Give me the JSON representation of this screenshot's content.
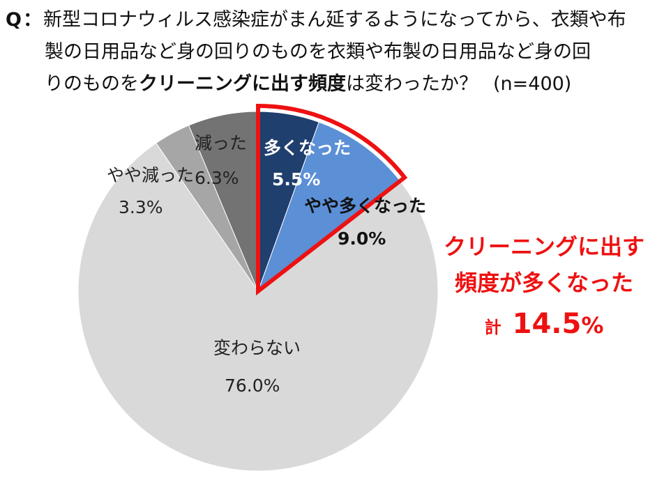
{
  "question": {
    "prefix": "Q：",
    "line1": "新型コロナウィルス感染症がまん延するようになってから、衣類や布",
    "line2": "製の日用品など身の回りのものを衣類や布製の日用品など身の回",
    "line3_pre": "りのものを",
    "line3_bold": "クリーニングに出す頻度",
    "line3_post": "は変わったか？",
    "n": "(n=400)"
  },
  "chart_data": {
    "type": "pie",
    "start": "12 o'clock, clockwise",
    "slices": [
      {
        "label": "多くなった",
        "value": 5.5,
        "value_label": "5.5%",
        "color": "#1f3f6e"
      },
      {
        "label": "やや多くなった",
        "value": 9.0,
        "value_label": "9.0%",
        "color": "#5b8fd6"
      },
      {
        "label": "変わらない",
        "value": 76.0,
        "value_label": "76.0%",
        "color": "#d9d9d9"
      },
      {
        "label": "やや減った",
        "value": 3.3,
        "value_label": "3.3%",
        "color": "#a6a6a6"
      },
      {
        "label": "減った",
        "value": 6.3,
        "value_label": "6.3%",
        "color": "#737373"
      }
    ],
    "highlight": {
      "slices": [
        "多くなった",
        "やや多くなった"
      ],
      "outline_color": "#ee1111"
    }
  },
  "callout": {
    "line1": "クリーニングに出す",
    "line2": "頻度が多くなった",
    "total_prefix": "計",
    "total_value": "14.5",
    "total_unit": "%"
  }
}
